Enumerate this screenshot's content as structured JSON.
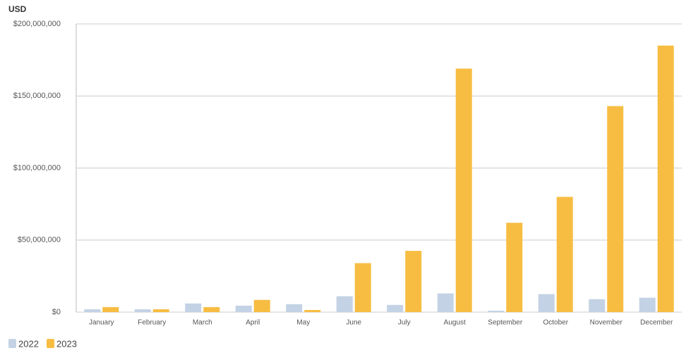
{
  "chart_data": {
    "type": "bar",
    "y_label": "USD",
    "categories": [
      "January",
      "February",
      "March",
      "April",
      "May",
      "June",
      "July",
      "August",
      "September",
      "October",
      "November",
      "December"
    ],
    "series": [
      {
        "name": "2022",
        "color": "#c3d2e4",
        "values": [
          2000000,
          2000000,
          6000000,
          4500000,
          5500000,
          11000000,
          5000000,
          13000000,
          1000000,
          12500000,
          9000000,
          10000000
        ]
      },
      {
        "name": "2023",
        "color": "#f7bd42",
        "values": [
          3500000,
          2000000,
          3500000,
          8500000,
          1500000,
          34000000,
          42500000,
          169000000,
          62000000,
          80000000,
          143000000,
          185000000
        ]
      }
    ],
    "ylim": [
      0,
      200000000
    ],
    "yticks": [
      {
        "value": 0,
        "label": "$0"
      },
      {
        "value": 50000000,
        "label": "$50,000,000"
      },
      {
        "value": 100000000,
        "label": "$100,000,000"
      },
      {
        "value": 150000000,
        "label": "$150,000,000"
      },
      {
        "value": 200000000,
        "label": "$200,000,000"
      }
    ],
    "grid": true
  }
}
